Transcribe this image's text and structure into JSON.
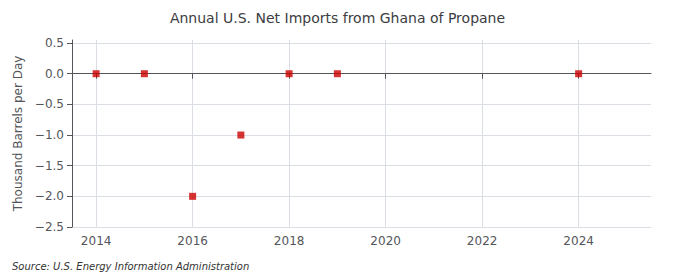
{
  "chart_data": {
    "type": "scatter",
    "title": "Annual U.S. Net Imports from Ghana of Propane",
    "ylabel": "Thousand Barrels per Day",
    "annotations": [
      "Source: U.S. Energy Information Administration"
    ],
    "x": [
      2014,
      2015,
      2016,
      2017,
      2018,
      2019,
      2024
    ],
    "values": [
      0.0,
      0.0,
      -2.0,
      -1.0,
      0.0,
      0.0,
      0.0
    ],
    "color": "#cc0000",
    "marker": "square",
    "xlim": [
      2013.5,
      2025.5
    ],
    "xticks": [
      2014,
      2016,
      2018,
      2020,
      2022,
      2024
    ],
    "ylim": [
      -2.5,
      0.55
    ],
    "yticks": [
      0.5,
      {
        "value": 0.0,
        "label": "0.0"
      },
      {
        "value": -0.5,
        "label": "−0.5"
      },
      {
        "value": -1.0,
        "label": "−1.0"
      },
      {
        "value": -1.5,
        "label": "−1.5"
      },
      {
        "value": -2.0,
        "label": "−2.0"
      },
      {
        "value": -2.5,
        "label": "−2.5"
      }
    ],
    "grid": true
  }
}
